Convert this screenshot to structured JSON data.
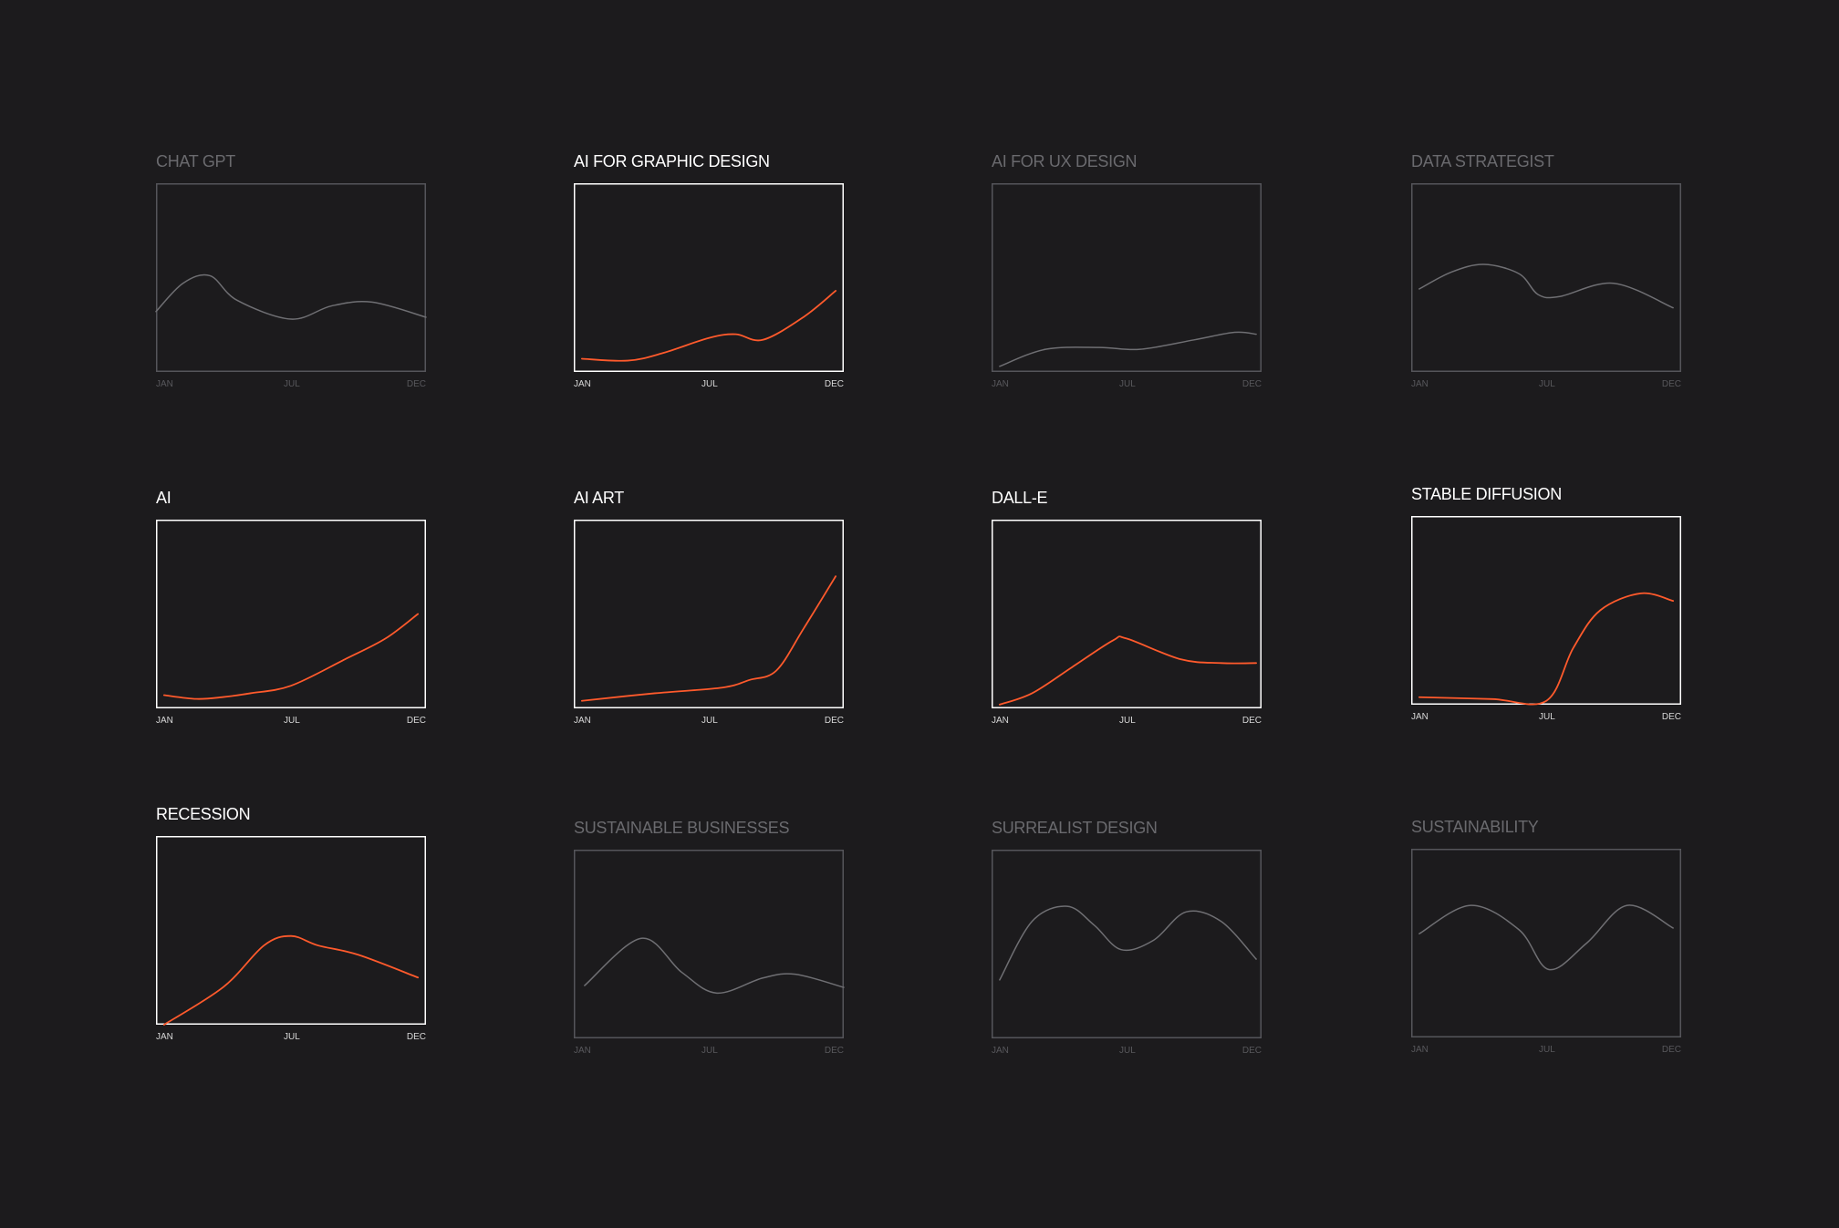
{
  "colors": {
    "background": "#1c1b1d",
    "highlight": "#ff5a2c",
    "muted": "#6f6f73",
    "active_frame": "#ffffff",
    "muted_frame": "#55555a",
    "active_text": "#ffffff",
    "muted_text": "#6a6a6e",
    "active_tick": "#d8d8d8",
    "muted_tick": "#58585c"
  },
  "chart_data": [
    {
      "type": "line",
      "title": "CHAT GPT",
      "highlighted": false,
      "x_ticks": [
        "JAN",
        "JUL",
        "DEC"
      ],
      "xlim": [
        0,
        1
      ],
      "ylim": [
        0,
        1
      ],
      "series": [
        {
          "values": [
            [
              0,
              0.32
            ],
            [
              0.1,
              0.47
            ],
            [
              0.2,
              0.51
            ],
            [
              0.3,
              0.38
            ],
            [
              0.5,
              0.28
            ],
            [
              0.65,
              0.35
            ],
            [
              0.8,
              0.37
            ],
            [
              1.0,
              0.29
            ]
          ]
        }
      ]
    },
    {
      "type": "line",
      "title": "AI FOR GRAPHIC DESIGN",
      "highlighted": true,
      "x_ticks": [
        "JAN",
        "JUL",
        "DEC"
      ],
      "xlim": [
        0,
        1
      ],
      "ylim": [
        0,
        1
      ],
      "series": [
        {
          "values": [
            [
              0.03,
              0.07
            ],
            [
              0.2,
              0.06
            ],
            [
              0.33,
              0.1
            ],
            [
              0.5,
              0.18
            ],
            [
              0.6,
              0.2
            ],
            [
              0.7,
              0.17
            ],
            [
              0.85,
              0.29
            ],
            [
              0.97,
              0.43
            ]
          ]
        }
      ]
    },
    {
      "type": "line",
      "title": "AI FOR UX DESIGN",
      "highlighted": false,
      "x_ticks": [
        "JAN",
        "JUL",
        "DEC"
      ],
      "xlim": [
        0,
        1
      ],
      "ylim": [
        0,
        1
      ],
      "series": [
        {
          "values": [
            [
              0.03,
              0.03
            ],
            [
              0.2,
              0.12
            ],
            [
              0.4,
              0.13
            ],
            [
              0.55,
              0.12
            ],
            [
              0.75,
              0.17
            ],
            [
              0.9,
              0.21
            ],
            [
              0.98,
              0.2
            ]
          ]
        }
      ]
    },
    {
      "type": "line",
      "title": "DATA STRATEGIST",
      "highlighted": false,
      "x_ticks": [
        "JAN",
        "JUL",
        "DEC"
      ],
      "xlim": [
        0,
        1
      ],
      "ylim": [
        0,
        1
      ],
      "series": [
        {
          "values": [
            [
              0.03,
              0.44
            ],
            [
              0.15,
              0.53
            ],
            [
              0.27,
              0.57
            ],
            [
              0.4,
              0.52
            ],
            [
              0.47,
              0.41
            ],
            [
              0.55,
              0.4
            ],
            [
              0.75,
              0.47
            ],
            [
              0.97,
              0.34
            ]
          ]
        }
      ]
    },
    {
      "type": "line",
      "title": "AI",
      "highlighted": true,
      "x_ticks": [
        "JAN",
        "JUL",
        "DEC"
      ],
      "xlim": [
        0,
        1
      ],
      "ylim": [
        0,
        1
      ],
      "series": [
        {
          "values": [
            [
              0.03,
              0.07
            ],
            [
              0.15,
              0.05
            ],
            [
              0.25,
              0.06
            ],
            [
              0.35,
              0.08
            ],
            [
              0.5,
              0.12
            ],
            [
              0.7,
              0.26
            ],
            [
              0.85,
              0.37
            ],
            [
              0.97,
              0.5
            ]
          ]
        }
      ]
    },
    {
      "type": "line",
      "title": "AI ART",
      "highlighted": true,
      "x_ticks": [
        "JAN",
        "JUL",
        "DEC"
      ],
      "xlim": [
        0,
        1
      ],
      "ylim": [
        0,
        1
      ],
      "series": [
        {
          "values": [
            [
              0.03,
              0.04
            ],
            [
              0.3,
              0.08
            ],
            [
              0.55,
              0.11
            ],
            [
              0.65,
              0.15
            ],
            [
              0.75,
              0.2
            ],
            [
              0.85,
              0.42
            ],
            [
              0.97,
              0.7
            ]
          ]
        }
      ]
    },
    {
      "type": "line",
      "title": "DALL-E",
      "highlighted": true,
      "x_ticks": [
        "JAN",
        "JUL",
        "DEC"
      ],
      "xlim": [
        0,
        1
      ],
      "ylim": [
        0,
        1
      ],
      "series": [
        {
          "values": [
            [
              0.03,
              0.02
            ],
            [
              0.15,
              0.08
            ],
            [
              0.3,
              0.22
            ],
            [
              0.45,
              0.36
            ],
            [
              0.5,
              0.37
            ],
            [
              0.7,
              0.26
            ],
            [
              0.85,
              0.24
            ],
            [
              0.98,
              0.24
            ]
          ]
        }
      ]
    },
    {
      "type": "line",
      "title": "STABLE DIFFUSION",
      "highlighted": true,
      "x_ticks": [
        "JAN",
        "JUL",
        "DEC"
      ],
      "xlim": [
        0,
        1
      ],
      "ylim": [
        0,
        1
      ],
      "series": [
        {
          "values": [
            [
              0.03,
              0.04
            ],
            [
              0.3,
              0.03
            ],
            [
              0.5,
              0.02
            ],
            [
              0.6,
              0.3
            ],
            [
              0.7,
              0.5
            ],
            [
              0.85,
              0.59
            ],
            [
              0.97,
              0.55
            ]
          ]
        }
      ]
    },
    {
      "type": "line",
      "title": "RECESSION",
      "highlighted": true,
      "x_ticks": [
        "JAN",
        "JUL",
        "DEC"
      ],
      "xlim": [
        0,
        1
      ],
      "ylim": [
        0,
        1
      ],
      "series": [
        {
          "values": [
            [
              0.03,
              0.0
            ],
            [
              0.25,
              0.2
            ],
            [
              0.4,
              0.42
            ],
            [
              0.5,
              0.47
            ],
            [
              0.6,
              0.42
            ],
            [
              0.75,
              0.37
            ],
            [
              0.97,
              0.25
            ]
          ]
        }
      ]
    },
    {
      "type": "line",
      "title": "SUSTAINABLE BUSINESSES",
      "highlighted": false,
      "x_ticks": [
        "JAN",
        "JUL",
        "DEC"
      ],
      "xlim": [
        0,
        1
      ],
      "ylim": [
        0,
        1
      ],
      "series": [
        {
          "values": [
            [
              0.04,
              0.28
            ],
            [
              0.25,
              0.53
            ],
            [
              0.4,
              0.35
            ],
            [
              0.53,
              0.24
            ],
            [
              0.7,
              0.32
            ],
            [
              0.82,
              0.34
            ],
            [
              1.0,
              0.27
            ]
          ]
        }
      ]
    },
    {
      "type": "line",
      "title": "SURREALIST DESIGN",
      "highlighted": false,
      "x_ticks": [
        "JAN",
        "JUL",
        "DEC"
      ],
      "xlim": [
        0,
        1
      ],
      "ylim": [
        0,
        1
      ],
      "series": [
        {
          "values": [
            [
              0.03,
              0.31
            ],
            [
              0.15,
              0.62
            ],
            [
              0.28,
              0.7
            ],
            [
              0.38,
              0.6
            ],
            [
              0.48,
              0.47
            ],
            [
              0.6,
              0.52
            ],
            [
              0.72,
              0.67
            ],
            [
              0.85,
              0.62
            ],
            [
              0.98,
              0.42
            ]
          ]
        }
      ]
    },
    {
      "type": "line",
      "title": "SUSTAINABILITY",
      "highlighted": false,
      "x_ticks": [
        "JAN",
        "JUL",
        "DEC"
      ],
      "xlim": [
        0,
        1
      ],
      "ylim": [
        0,
        1
      ],
      "series": [
        {
          "values": [
            [
              0.03,
              0.55
            ],
            [
              0.22,
              0.7
            ],
            [
              0.4,
              0.57
            ],
            [
              0.51,
              0.36
            ],
            [
              0.65,
              0.5
            ],
            [
              0.8,
              0.7
            ],
            [
              0.97,
              0.58
            ]
          ]
        }
      ]
    }
  ]
}
